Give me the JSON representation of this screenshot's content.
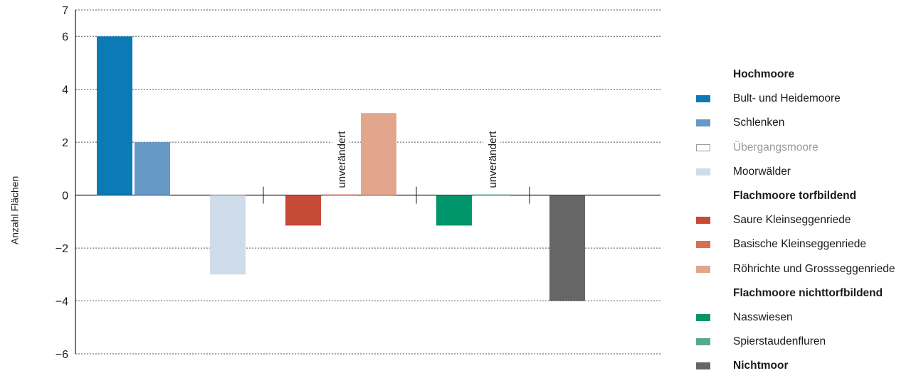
{
  "chart_data": {
    "type": "bar",
    "ylabel": "Anzahl Flächen",
    "ylim": [
      -6,
      7
    ],
    "yticks": [
      {
        "value": 7,
        "label": "7"
      },
      {
        "value": 6,
        "label": "6"
      },
      {
        "value": 4,
        "label": "4"
      },
      {
        "value": 2,
        "label": "2"
      },
      {
        "value": 0,
        "label": "0"
      },
      {
        "value": -2,
        "label": "−2"
      },
      {
        "value": -4,
        "label": "−4"
      },
      {
        "value": -6,
        "label": "−6"
      }
    ],
    "grid": true,
    "legend_position": "right",
    "groups": [
      {
        "name": "Hochmoore",
        "series": [
          {
            "name": "Bult- und Heidemoore",
            "value": 6,
            "color": "#0b7ab5"
          },
          {
            "name": "Schlenken",
            "value": 2,
            "color": "#6699c6"
          },
          {
            "name": "Übergangsmoore",
            "value": 0,
            "color": "#ffffff",
            "outline": "#b5b5b5",
            "text_color": "#9a9a9a"
          },
          {
            "name": "Moorwälder",
            "value": -3,
            "color": "#cfdcea"
          }
        ]
      },
      {
        "name": "Flachmoore torfbildend",
        "series": [
          {
            "name": "Saure Kleinseggenriede",
            "value": -1.15,
            "color": "#c64a36"
          },
          {
            "name": "Basische Kleinseggenriede",
            "value": 0,
            "color": "#d97055"
          },
          {
            "name": "Röhrichte und Grossseggenriede",
            "value": 3.1,
            "color": "#e1a68c"
          }
        ]
      },
      {
        "name": "Flachmoore nichttorfbildend",
        "series": [
          {
            "name": "Nasswiesen",
            "value": -1.15,
            "color": "#00956b"
          },
          {
            "name": "Spierstaudenfluren",
            "value": 0,
            "color": "#5aaa8a"
          }
        ]
      },
      {
        "name": "Nichtmoor",
        "series": [
          {
            "name": "Nichtmoor",
            "value": -4,
            "color": "#666666"
          }
        ]
      }
    ],
    "annotations": [
      {
        "text": "unverändert",
        "series": "Basische Kleinseggenriede"
      },
      {
        "text": "unverändert",
        "series": "Spierstaudenfluren"
      }
    ]
  },
  "legend": [
    {
      "kind": "group",
      "label": "Hochmoore"
    },
    {
      "kind": "item",
      "label": "Bult- und Heidemoore",
      "color": "#0b7ab5"
    },
    {
      "kind": "item",
      "label": "Schlenken",
      "color": "#6699c6"
    },
    {
      "kind": "item",
      "label": "Übergangsmoore",
      "color": "#ffffff",
      "outline": "#9a9a9a",
      "text_color": "#9a9a9a"
    },
    {
      "kind": "item",
      "label": "Moorwälder",
      "color": "#cfdcea"
    },
    {
      "kind": "group",
      "label": "Flachmoore torfbildend"
    },
    {
      "kind": "item",
      "label": "Saure Kleinseggenriede",
      "color": "#c64a36"
    },
    {
      "kind": "item",
      "label": "Basische Kleinseggenriede",
      "color": "#d97055"
    },
    {
      "kind": "item",
      "label": "Röhrichte und Grossseggenriede",
      "color": "#e1a68c"
    },
    {
      "kind": "group",
      "label": "Flachmoore nichttorfbildend"
    },
    {
      "kind": "item",
      "label": "Nasswiesen",
      "color": "#00956b"
    },
    {
      "kind": "item",
      "label": "Spierstaudenfluren",
      "color": "#5aaa8a"
    },
    {
      "kind": "item",
      "label": "Nichtmoor",
      "color": "#666666",
      "bold": true
    }
  ]
}
